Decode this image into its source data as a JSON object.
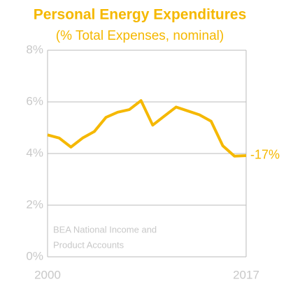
{
  "chart_data": {
    "type": "line",
    "title": "Personal Energy Expenditures",
    "subtitle": "(% Total Expenses, nominal)",
    "annotation": "-17%",
    "source": [
      "BEA National Income and",
      "Product Accounts"
    ],
    "x": [
      2000,
      2001,
      2002,
      2003,
      2004,
      2005,
      2006,
      2007,
      2008,
      2009,
      2010,
      2011,
      2012,
      2013,
      2014,
      2015,
      2016,
      2017
    ],
    "series": [
      {
        "color": "#f5b800",
        "values": [
          4.72,
          4.6,
          4.25,
          4.6,
          4.85,
          5.4,
          5.6,
          5.7,
          6.05,
          5.1,
          5.45,
          5.8,
          5.65,
          5.5,
          5.25,
          4.3,
          3.9,
          3.92
        ]
      }
    ],
    "xlim": [
      2000,
      2017
    ],
    "xticks": [
      2000,
      2017
    ],
    "ylim": [
      0,
      8
    ],
    "yticks": [
      {
        "value": 0,
        "label": "0%"
      },
      {
        "value": 2,
        "label": "2%"
      },
      {
        "value": 4,
        "label": "4%"
      },
      {
        "value": 6,
        "label": "6%"
      },
      {
        "value": 8,
        "label": "8%"
      }
    ],
    "grid": true
  }
}
